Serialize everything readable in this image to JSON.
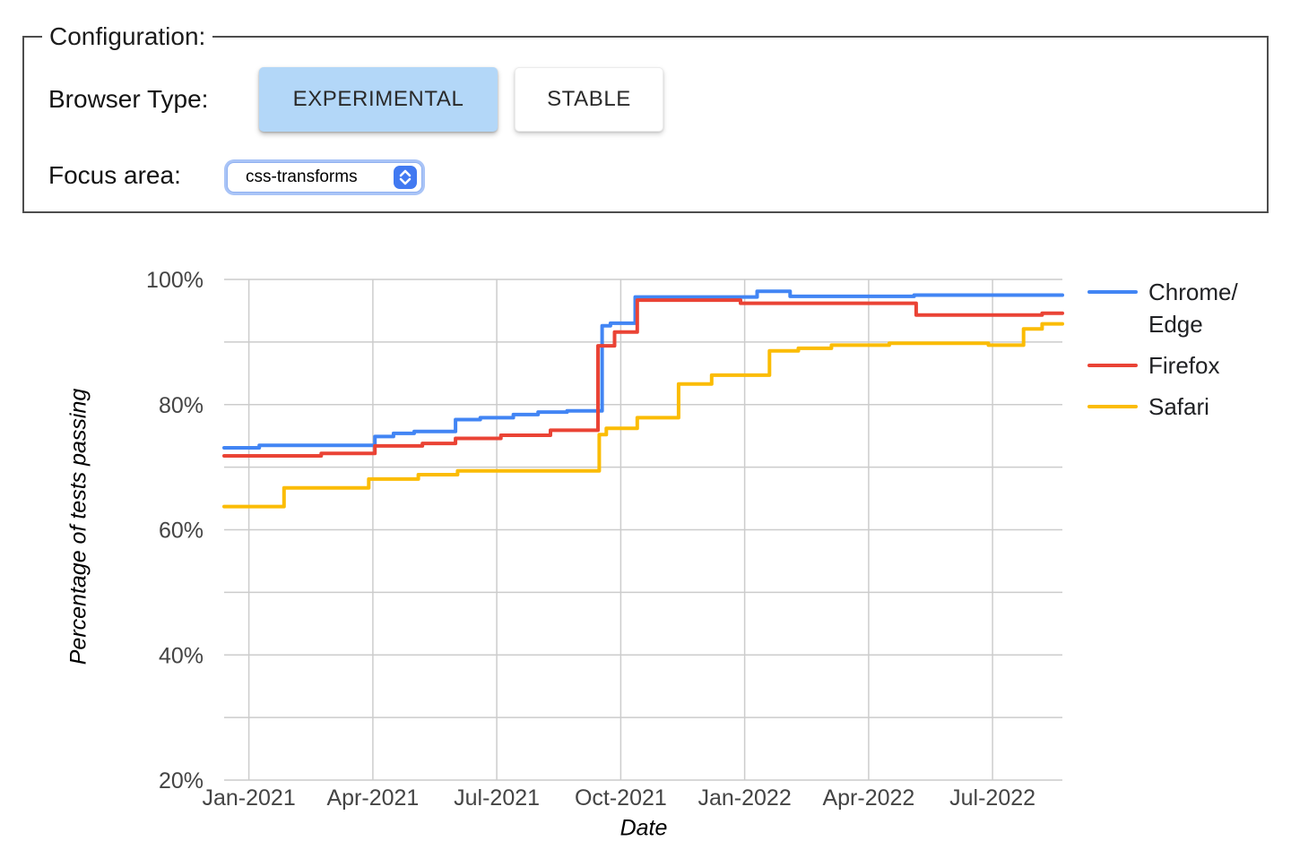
{
  "config": {
    "legend": "Configuration:",
    "browser_type_label": "Browser Type:",
    "buttons": [
      {
        "label": "EXPERIMENTAL",
        "selected": true
      },
      {
        "label": "STABLE",
        "selected": false
      }
    ],
    "focus_area_label": "Focus area:",
    "focus_area_value": "css-transforms"
  },
  "colors": {
    "chrome_edge": "#4285F4",
    "firefox": "#EA4335",
    "safari": "#FBBC04",
    "selected_button_bg": "#B3D7F8",
    "gridline": "#CCCCCC",
    "axis_tick": "#444444"
  },
  "chart_data": {
    "type": "line",
    "xlabel": "Date",
    "ylabel": "Percentage of tests passing",
    "x_unit": "months since Jan-2021",
    "xlim": [
      -0.6,
      19.69
    ],
    "ylim": [
      20,
      100
    ],
    "grid": true,
    "legend_position": "right",
    "y_ticks": [
      20,
      40,
      60,
      80,
      100
    ],
    "y_tick_suffix": "%",
    "y_gridlines": [
      20,
      30,
      40,
      50,
      60,
      70,
      80,
      90,
      100
    ],
    "x_ticks": [
      {
        "m": 0,
        "label": "Jan-2021"
      },
      {
        "m": 3,
        "label": "Apr-2021"
      },
      {
        "m": 6,
        "label": "Jul-2021"
      },
      {
        "m": 9,
        "label": "Oct-2021"
      },
      {
        "m": 12,
        "label": "Jan-2022"
      },
      {
        "m": 15,
        "label": "Apr-2022"
      },
      {
        "m": 18,
        "label": "Jul-2022"
      }
    ],
    "series": [
      {
        "id": "chrome-edge",
        "name": "Chrome/Edge",
        "legend_lines": [
          "Chrome/",
          "Edge"
        ],
        "color": "#4285F4",
        "interpolation": "step-after",
        "points": [
          [
            -0.6,
            73.1
          ],
          [
            0.25,
            73.5
          ],
          [
            3.05,
            74.9
          ],
          [
            3.5,
            75.4
          ],
          [
            4.0,
            75.7
          ],
          [
            5.0,
            77.6
          ],
          [
            5.6,
            77.9
          ],
          [
            6.4,
            78.4
          ],
          [
            7.0,
            78.8
          ],
          [
            7.7,
            79.0
          ],
          [
            8.55,
            92.6
          ],
          [
            8.75,
            93.0
          ],
          [
            9.35,
            97.2
          ],
          [
            12.3,
            98.1
          ],
          [
            13.1,
            97.3
          ],
          [
            16.1,
            97.5
          ],
          [
            19.69,
            97.5
          ]
        ]
      },
      {
        "id": "firefox",
        "name": "Firefox",
        "legend_lines": [
          "Firefox"
        ],
        "color": "#EA4335",
        "interpolation": "step-after",
        "points": [
          [
            -0.6,
            71.8
          ],
          [
            1.75,
            72.2
          ],
          [
            3.05,
            73.4
          ],
          [
            4.2,
            73.8
          ],
          [
            5.0,
            74.6
          ],
          [
            6.1,
            75.1
          ],
          [
            7.3,
            75.9
          ],
          [
            8.45,
            89.4
          ],
          [
            8.85,
            91.6
          ],
          [
            9.4,
            96.7
          ],
          [
            11.9,
            96.2
          ],
          [
            16.15,
            94.3
          ],
          [
            19.2,
            94.6
          ],
          [
            19.69,
            94.6
          ]
        ]
      },
      {
        "id": "safari",
        "name": "Safari",
        "legend_lines": [
          "Safari"
        ],
        "color": "#FBBC04",
        "interpolation": "step-after",
        "points": [
          [
            -0.6,
            63.7
          ],
          [
            0.85,
            66.7
          ],
          [
            2.9,
            68.1
          ],
          [
            4.1,
            68.8
          ],
          [
            5.05,
            69.4
          ],
          [
            8.48,
            75.2
          ],
          [
            8.65,
            76.2
          ],
          [
            9.4,
            77.9
          ],
          [
            10.4,
            83.3
          ],
          [
            11.2,
            84.7
          ],
          [
            12.6,
            88.6
          ],
          [
            13.3,
            89.0
          ],
          [
            14.1,
            89.5
          ],
          [
            15.5,
            89.8
          ],
          [
            17.9,
            89.5
          ],
          [
            18.75,
            92.1
          ],
          [
            19.2,
            92.9
          ],
          [
            19.69,
            92.9
          ]
        ]
      }
    ]
  }
}
